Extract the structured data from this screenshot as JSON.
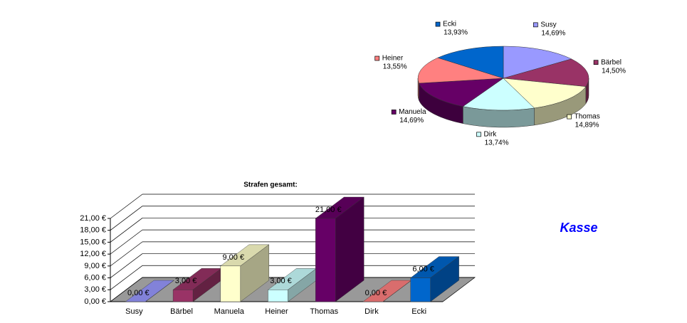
{
  "caption": "Kasse",
  "chart_data": [
    {
      "type": "pie",
      "categories": [
        "Susy",
        "Bärbel",
        "Thomas",
        "Dirk",
        "Manuela",
        "Heiner",
        "Ecki"
      ],
      "values": [
        14.69,
        14.5,
        14.89,
        13.74,
        14.69,
        13.55,
        13.93
      ],
      "value_labels": [
        "14,69%",
        "14,50%",
        "14,89%",
        "13,74%",
        "14,69%",
        "13,55%",
        "13,93%"
      ],
      "colors": [
        "#9999ff",
        "#993366",
        "#ffffcc",
        "#ccffff",
        "#660066",
        "#ff8080",
        "#0066cc"
      ]
    },
    {
      "type": "bar3d",
      "title": "Strafen gesamt:",
      "categories": [
        "Susy",
        "Bärbel",
        "Manuela",
        "Heiner",
        "Thomas",
        "Dirk",
        "Ecki"
      ],
      "values": [
        0,
        3,
        9,
        3,
        21,
        0,
        6
      ],
      "value_labels": [
        "0,00 €",
        "3,00 €",
        "9,00 €",
        "3,00 €",
        "21,00 €",
        "0,00 €",
        "6,00 €"
      ],
      "colors": [
        "#9999ff",
        "#993366",
        "#ffffcc",
        "#ccffff",
        "#660066",
        "#ff8080",
        "#0066cc"
      ],
      "ylim": [
        0,
        21
      ],
      "yticks": [
        {
          "value": 0,
          "label": "0,00 €"
        },
        {
          "value": 3,
          "label": "3,00 €"
        },
        {
          "value": 6,
          "label": "6,00 €"
        },
        {
          "value": 9,
          "label": "9,00 €"
        },
        {
          "value": 12,
          "label": "12,00 €"
        },
        {
          "value": 15,
          "label": "15,00 €"
        },
        {
          "value": 18,
          "label": "18,00 €"
        },
        {
          "value": 21,
          "label": "21,00 €"
        }
      ]
    }
  ]
}
